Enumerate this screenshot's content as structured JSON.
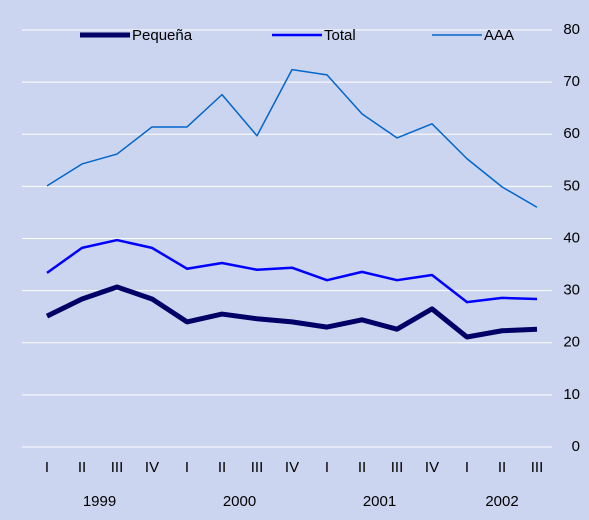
{
  "chart_data": {
    "type": "line",
    "categories": [
      "I",
      "II",
      "III",
      "IV",
      "I",
      "II",
      "III",
      "IV",
      "I",
      "II",
      "III",
      "IV",
      "I",
      "II",
      "III"
    ],
    "group_labels": [
      "1999",
      "2000",
      "2001",
      "2002"
    ],
    "group_sizes": [
      4,
      4,
      4,
      3
    ],
    "series": [
      {
        "name": "Pequeña",
        "color": "#000066",
        "values": [
          25.1,
          28.4,
          30.7,
          28.4,
          24.0,
          25.5,
          24.6,
          24.0,
          23.0,
          24.4,
          22.6,
          26.5,
          21.1,
          22.3,
          22.6
        ]
      },
      {
        "name": "Total",
        "color": "#0000ff",
        "values": [
          33.4,
          38.2,
          39.7,
          38.2,
          34.2,
          35.3,
          34.0,
          34.4,
          32.0,
          33.6,
          32.0,
          33.0,
          27.8,
          28.6,
          28.4
        ]
      },
      {
        "name": "AAA",
        "color": "#0066cc",
        "values": [
          50.1,
          54.3,
          56.2,
          61.4,
          61.4,
          67.6,
          59.7,
          72.4,
          71.4,
          63.9,
          59.3,
          62.0,
          55.3,
          49.9,
          46.0
        ]
      }
    ],
    "ylim": [
      0,
      80
    ],
    "yticks": [
      0,
      10,
      20,
      30,
      40,
      50,
      60,
      70,
      80
    ],
    "grid": true,
    "legend": "top"
  }
}
